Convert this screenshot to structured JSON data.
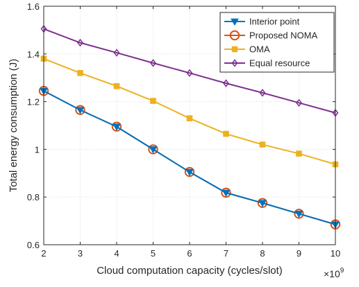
{
  "chart_data": {
    "type": "line",
    "xlabel": "Cloud computation capacity (cycles/slot)",
    "ylabel": "Total energy consumption (J)",
    "x_exponent_label": "×10",
    "x_exponent_power": "9",
    "xlim": [
      2,
      10
    ],
    "ylim": [
      0.6,
      1.6
    ],
    "x_ticks": [
      2,
      3,
      4,
      5,
      6,
      7,
      8,
      9,
      10
    ],
    "x_tick_labels": [
      "2",
      "3",
      "4",
      "5",
      "6",
      "7",
      "8",
      "9",
      "10"
    ],
    "y_ticks": [
      0.6,
      0.8,
      1.0,
      1.2,
      1.4,
      1.6
    ],
    "y_tick_labels": [
      "0.6",
      "0.8",
      "1",
      "1.2",
      "1.4",
      "1.6"
    ],
    "grid": true,
    "legend_position": "top-right",
    "x": [
      2,
      3,
      4,
      5,
      6,
      7,
      8,
      9,
      10
    ],
    "series": [
      {
        "name": "Interior point",
        "color": "#0072BD",
        "marker": "triangle-down",
        "values": [
          1.245,
          1.165,
          1.095,
          1.0,
          0.905,
          0.818,
          0.775,
          0.73,
          0.685
        ]
      },
      {
        "name": "Proposed NOMA",
        "color": "#D95319",
        "marker": "circle",
        "values": [
          1.245,
          1.165,
          1.095,
          1.0,
          0.905,
          0.818,
          0.775,
          0.73,
          0.685
        ]
      },
      {
        "name": "OMA",
        "color": "#EDB120",
        "marker": "square",
        "values": [
          1.38,
          1.32,
          1.265,
          1.203,
          1.13,
          1.065,
          1.02,
          0.982,
          0.937
        ]
      },
      {
        "name": "Equal resource",
        "color": "#7E2F8E",
        "marker": "diamond",
        "values": [
          1.505,
          1.447,
          1.405,
          1.362,
          1.32,
          1.277,
          1.237,
          1.195,
          1.153
        ]
      }
    ]
  }
}
